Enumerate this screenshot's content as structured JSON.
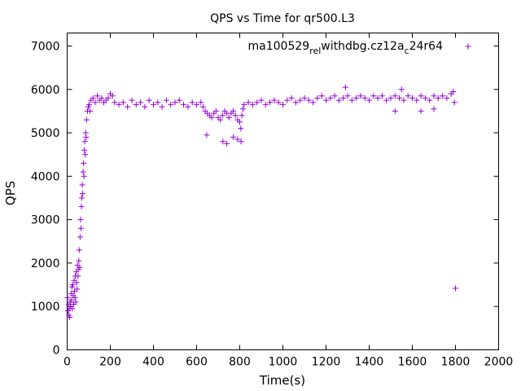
{
  "chart_data": {
    "type": "scatter",
    "title": "QPS vs Time for qr500.L3",
    "xlabel": "Time(s)",
    "ylabel": "QPS",
    "xlim": [
      0,
      2000
    ],
    "ylim": [
      0,
      7300
    ],
    "xticks": [
      0,
      200,
      400,
      600,
      800,
      1000,
      1200,
      1400,
      1600,
      1800,
      2000
    ],
    "yticks": [
      0,
      1000,
      2000,
      3000,
      4000,
      5000,
      6000,
      7000
    ],
    "grid": false,
    "legend_position": "top-right",
    "series_color": "#9400d3",
    "series": [
      {
        "name": "ma100529_rel_withdbg.cz12a_c24r64",
        "legend_parts": {
          "base1": "ma100529",
          "sub1": "rel",
          "base2": "withdbg.cz12a",
          "sub2": "c",
          "base3": "24r64"
        },
        "marker": "plus",
        "points": [
          [
            2,
            1200
          ],
          [
            4,
            900
          ],
          [
            6,
            1050
          ],
          [
            8,
            800
          ],
          [
            10,
            950
          ],
          [
            12,
            750
          ],
          [
            14,
            1100
          ],
          [
            16,
            1000
          ],
          [
            18,
            1300
          ],
          [
            20,
            1150
          ],
          [
            22,
            1450
          ],
          [
            24,
            950
          ],
          [
            26,
            1500
          ],
          [
            28,
            1250
          ],
          [
            30,
            1050
          ],
          [
            32,
            1600
          ],
          [
            34,
            1350
          ],
          [
            36,
            1200
          ],
          [
            38,
            1700
          ],
          [
            40,
            1100
          ],
          [
            42,
            1800
          ],
          [
            44,
            1550
          ],
          [
            46,
            1400
          ],
          [
            48,
            1950
          ],
          [
            50,
            1700
          ],
          [
            52,
            1850
          ],
          [
            54,
            2050
          ],
          [
            56,
            2300
          ],
          [
            58,
            1900
          ],
          [
            60,
            2600
          ],
          [
            62,
            3000
          ],
          [
            64,
            2800
          ],
          [
            66,
            3300
          ],
          [
            68,
            3500
          ],
          [
            70,
            3800
          ],
          [
            72,
            3600
          ],
          [
            74,
            4100
          ],
          [
            76,
            4300
          ],
          [
            78,
            4000
          ],
          [
            80,
            4600
          ],
          [
            82,
            4800
          ],
          [
            84,
            4500
          ],
          [
            86,
            5000
          ],
          [
            88,
            4900
          ],
          [
            90,
            5300
          ],
          [
            94,
            5500
          ],
          [
            98,
            5600
          ],
          [
            102,
            5650
          ],
          [
            106,
            5500
          ],
          [
            110,
            5750
          ],
          [
            120,
            5800
          ],
          [
            130,
            5700
          ],
          [
            140,
            5850
          ],
          [
            150,
            5750
          ],
          [
            160,
            5800
          ],
          [
            170,
            5700
          ],
          [
            180,
            5750
          ],
          [
            190,
            5800
          ],
          [
            200,
            5900
          ],
          [
            210,
            5850
          ],
          [
            220,
            5700
          ],
          [
            240,
            5650
          ],
          [
            260,
            5700
          ],
          [
            280,
            5600
          ],
          [
            300,
            5750
          ],
          [
            320,
            5650
          ],
          [
            340,
            5700
          ],
          [
            360,
            5600
          ],
          [
            380,
            5750
          ],
          [
            400,
            5650
          ],
          [
            420,
            5700
          ],
          [
            440,
            5600
          ],
          [
            460,
            5750
          ],
          [
            480,
            5650
          ],
          [
            500,
            5700
          ],
          [
            520,
            5750
          ],
          [
            540,
            5650
          ],
          [
            560,
            5600
          ],
          [
            580,
            5700
          ],
          [
            600,
            5650
          ],
          [
            620,
            5700
          ],
          [
            630,
            5600
          ],
          [
            640,
            5500
          ],
          [
            650,
            5450
          ],
          [
            660,
            5400
          ],
          [
            670,
            5350
          ],
          [
            680,
            5450
          ],
          [
            690,
            5500
          ],
          [
            700,
            5350
          ],
          [
            710,
            5300
          ],
          [
            720,
            5400
          ],
          [
            730,
            5500
          ],
          [
            740,
            5450
          ],
          [
            750,
            5350
          ],
          [
            760,
            5450
          ],
          [
            770,
            5500
          ],
          [
            780,
            5400
          ],
          [
            790,
            5300
          ],
          [
            800,
            5250
          ],
          [
            805,
            5100
          ],
          [
            810,
            5400
          ],
          [
            815,
            5550
          ],
          [
            820,
            5650
          ],
          [
            840,
            5700
          ],
          [
            860,
            5650
          ],
          [
            880,
            5700
          ],
          [
            900,
            5750
          ],
          [
            920,
            5650
          ],
          [
            940,
            5700
          ],
          [
            960,
            5750
          ],
          [
            980,
            5700
          ],
          [
            1000,
            5650
          ],
          [
            1020,
            5750
          ],
          [
            1040,
            5800
          ],
          [
            1060,
            5700
          ],
          [
            1080,
            5750
          ],
          [
            1100,
            5800
          ],
          [
            1120,
            5750
          ],
          [
            1140,
            5700
          ],
          [
            1160,
            5800
          ],
          [
            1180,
            5850
          ],
          [
            1200,
            5750
          ],
          [
            1220,
            5800
          ],
          [
            1240,
            5850
          ],
          [
            1260,
            5750
          ],
          [
            1280,
            5800
          ],
          [
            1300,
            5850
          ],
          [
            1320,
            5750
          ],
          [
            1340,
            5800
          ],
          [
            1360,
            5850
          ],
          [
            1380,
            5800
          ],
          [
            1400,
            5750
          ],
          [
            1420,
            5850
          ],
          [
            1440,
            5800
          ],
          [
            1460,
            5850
          ],
          [
            1480,
            5750
          ],
          [
            1500,
            5800
          ],
          [
            1520,
            5850
          ],
          [
            1540,
            5800
          ],
          [
            1560,
            5750
          ],
          [
            1580,
            5850
          ],
          [
            1600,
            5800
          ],
          [
            1620,
            5750
          ],
          [
            1640,
            5850
          ],
          [
            1660,
            5800
          ],
          [
            1680,
            5750
          ],
          [
            1700,
            5850
          ],
          [
            1720,
            5800
          ],
          [
            1740,
            5850
          ],
          [
            1760,
            5800
          ],
          [
            1780,
            5900
          ],
          [
            1790,
            5950
          ],
          [
            1795,
            5700
          ],
          [
            1800,
            1420
          ],
          [
            647,
            4950
          ],
          [
            722,
            4800
          ],
          [
            740,
            4750
          ],
          [
            770,
            4900
          ],
          [
            790,
            4850
          ],
          [
            806,
            4800
          ],
          [
            1290,
            6050
          ],
          [
            1550,
            6000
          ],
          [
            1640,
            5500
          ],
          [
            1700,
            5550
          ],
          [
            1520,
            5500
          ]
        ]
      }
    ]
  }
}
